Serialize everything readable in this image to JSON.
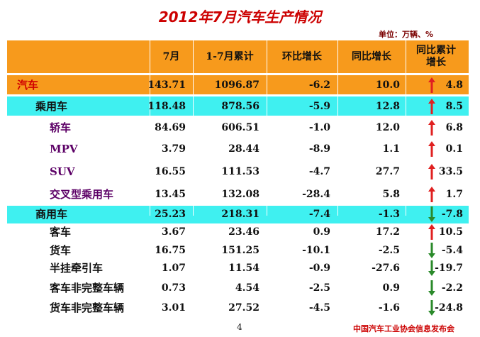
{
  "title": "2012年7月汽车生产情况",
  "unit": "单位：万辆、%",
  "headers": [
    "7月",
    "1-7月累计",
    "环比增长",
    "同比增长",
    "同比累计增长"
  ],
  "rows": [
    {
      "name": "汽车",
      "m": "143.71",
      "ytd": "1096.87",
      "mom": "-6.2",
      "yoy": "10.0",
      "yoy_ytd": "4.8",
      "trend": "up"
    },
    {
      "name": "乘用车",
      "m": "118.48",
      "ytd": "878.56",
      "mom": "-5.9",
      "yoy": "12.8",
      "yoy_ytd": "8.5",
      "trend": "up"
    },
    {
      "name": "轿车",
      "m": "84.69",
      "ytd": "606.51",
      "mom": "-1.0",
      "yoy": "12.0",
      "yoy_ytd": "6.8",
      "trend": "up"
    },
    {
      "name": "MPV",
      "m": "3.79",
      "ytd": "28.44",
      "mom": "-8.9",
      "yoy": "1.1",
      "yoy_ytd": "0.1",
      "trend": "up"
    },
    {
      "name": "SUV",
      "m": "16.55",
      "ytd": "111.53",
      "mom": "-4.7",
      "yoy": "27.7",
      "yoy_ytd": "33.5",
      "trend": "up"
    },
    {
      "name": "交叉型乘用车",
      "m": "13.45",
      "ytd": "132.08",
      "mom": "-28.4",
      "yoy": "5.8",
      "yoy_ytd": "1.7",
      "trend": "up"
    },
    {
      "name": "商用车",
      "m": "25.23",
      "ytd": "218.31",
      "mom": "-7.4",
      "yoy": "-1.3",
      "yoy_ytd": "-7.8",
      "trend": "down"
    },
    {
      "name": "客车",
      "m": "3.67",
      "ytd": "23.46",
      "mom": "0.9",
      "yoy": "17.2",
      "yoy_ytd": "10.5",
      "trend": "up"
    },
    {
      "name": "货车",
      "m": "16.75",
      "ytd": "151.25",
      "mom": "-10.1",
      "yoy": "-2.5",
      "yoy_ytd": "-5.4",
      "trend": "down"
    },
    {
      "name": "半挂牵引车",
      "m": "1.07",
      "ytd": "11.54",
      "mom": "-0.9",
      "yoy": "-27.6",
      "yoy_ytd": "-19.7",
      "trend": "down"
    },
    {
      "name": "客车非完整车辆",
      "m": "0.73",
      "ytd": "4.54",
      "mom": "-2.5",
      "yoy": "0.9",
      "yoy_ytd": "-2.2",
      "trend": "down"
    },
    {
      "name": "货车非完整车辆",
      "m": "3.01",
      "ytd": "27.52",
      "mom": "-4.5",
      "yoy": "-1.6",
      "yoy_ytd": "-24.8",
      "trend": "down"
    }
  ],
  "colors": {
    "up": "#e02020",
    "down": "#2a8a2a"
  },
  "page_number": "4",
  "footer": "中国汽车工业协会信息发布会"
}
